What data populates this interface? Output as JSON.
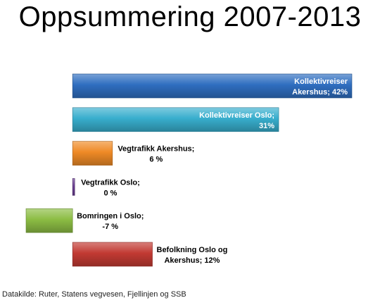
{
  "chart_data": {
    "type": "bar",
    "orientation": "horizontal",
    "title": "Oppsummering 2007-2013",
    "unit": "%",
    "categories": [
      "Kollektivreiser Akershus",
      "Kollektivreiser Oslo",
      "Vegtrafikk Akershus",
      "Vegtrafikk Oslo",
      "Bomringen i Oslo",
      "Befolkning Oslo og Akershus"
    ],
    "values": [
      42,
      31,
      6,
      0,
      -7,
      12
    ],
    "data_labels": [
      [
        "Kollektivreiser",
        "Akershus; 42%"
      ],
      [
        "Kollektivreiser Oslo;",
        "31%"
      ],
      [
        "Vegtrafikk Akershus;",
        "6 %"
      ],
      [
        "Vegtrafikk Oslo;",
        "0 %"
      ],
      [
        "Bomringen i Oslo;",
        "-7 %"
      ],
      [
        "Befolkning Oslo og",
        "Akershus; 12%"
      ]
    ],
    "colors": [
      "#2f6ec0",
      "#38aecd",
      "#ef8a26",
      "#6c3f94",
      "#8cbd44",
      "#c23a33"
    ],
    "label_colors": [
      "#ffffff",
      "#ffffff",
      "#000000",
      "#000000",
      "#000000",
      "#000000"
    ],
    "label_position": [
      "inside-end",
      "inside-end",
      "outside-end",
      "outside-end",
      "outside-end",
      "outside-end"
    ],
    "xlim": [
      -8.8,
      42
    ]
  },
  "source": "Datakilde: Ruter, Statens vegvesen, Fjellinjen og SSB"
}
